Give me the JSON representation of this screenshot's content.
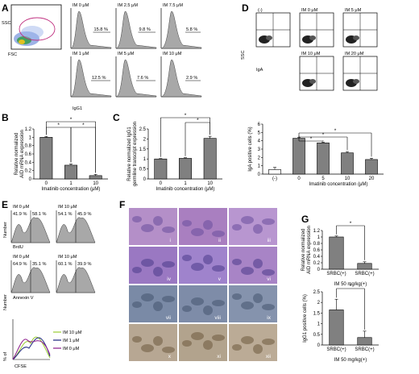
{
  "panel_letters": [
    "A",
    "B",
    "C",
    "D",
    "E",
    "F",
    "G"
  ],
  "A": {
    "scatter": {
      "x_label": "FSC",
      "y_label": "SSC"
    },
    "histograms": [
      {
        "title": "IM 0 μM",
        "pct": "15.8 %"
      },
      {
        "title": "IM 2.5 μM",
        "pct": "9.8 %"
      },
      {
        "title": "IM 7.5 μM",
        "pct": "5.8 %"
      },
      {
        "title": "IM 1 μM",
        "pct": "12.5 %"
      },
      {
        "title": "IM 5 μM",
        "pct": "7.6 %"
      },
      {
        "title": "IM 10 μM",
        "pct": "2.9 %"
      }
    ],
    "x_label": "IgG1"
  },
  "D": {
    "flow": [
      {
        "title": "(-)"
      },
      {
        "title": "IM 0 μM"
      },
      {
        "title": "IM 5 μM"
      },
      {
        "title": "IM 10 μM"
      },
      {
        "title": "IM 20 μM"
      }
    ],
    "ssc_label": "SSC",
    "iga_label": "IgA"
  },
  "E": {
    "titles": [
      "IM 0 μM",
      "IM 10 μM"
    ],
    "brdu": [
      [
        "41.9 %",
        "58.1 %"
      ],
      [
        "54.1 %",
        "45.9 %"
      ]
    ],
    "annexin": [
      [
        "64.9 %",
        "35.1 %"
      ],
      [
        "60.1 %",
        "39.9 %"
      ]
    ],
    "brdu_label": "BrdU",
    "annexin_label": "Annexin V",
    "number_label": "Number",
    "cfse_label": "CFSE",
    "pct_label": "% of",
    "legend": [
      "IM 10 μM",
      "IM 1 μM",
      "IM 0 μM"
    ],
    "legend_colors": [
      "#9acd32",
      "#1a237e",
      "#8a1a8a"
    ]
  },
  "F": {
    "labels": [
      "i",
      "ii",
      "iii",
      "iv",
      "v",
      "vi",
      "vii",
      "viii",
      "ix",
      "x",
      "xi",
      "xii"
    ]
  },
  "chart_data": [
    {
      "id": "B",
      "type": "bar",
      "categories": [
        "0",
        "1",
        "10"
      ],
      "values": [
        1.0,
        0.33,
        0.08
      ],
      "errors": [
        0.02,
        0.03,
        0.03
      ],
      "ylabel": "Relative normalized AID mRNA expression",
      "xlabel": "Imatinib concentration (μM)",
      "ylim": [
        0,
        1.2
      ],
      "yticks": [
        "0",
        "0.2",
        "0.4",
        "0.6",
        "0.8",
        "1",
        "1.2"
      ],
      "significance": [
        "*",
        "*",
        "*"
      ]
    },
    {
      "id": "C",
      "type": "bar",
      "categories": [
        "0",
        "1",
        "10"
      ],
      "values": [
        1.0,
        1.03,
        2.03
      ],
      "errors": [
        0.02,
        0.03,
        0.1
      ],
      "ylabel": "Relative normalized IgG1 germline transcript expression",
      "xlabel": "Imatinib concentration (μM)",
      "ylim": [
        0,
        2.5
      ],
      "yticks": [
        "0",
        "0.5",
        "1",
        "1.5",
        "2",
        "2.5"
      ],
      "significance": [
        "*",
        "*"
      ]
    },
    {
      "id": "D",
      "type": "bar",
      "categories": [
        "(-)",
        "0",
        "5",
        "10",
        "20"
      ],
      "values": [
        0.55,
        4.3,
        3.75,
        2.55,
        1.75
      ],
      "errors": [
        0.25,
        0.1,
        0.1,
        0.15,
        0.15
      ],
      "colors": [
        "#ffffff",
        "#808080",
        "#808080",
        "#808080",
        "#808080"
      ],
      "ylabel": "IgA positive cells (%)",
      "xlabel": "Imatinib concentration (μM)",
      "ylim": [
        0,
        6
      ],
      "yticks": [
        "0",
        "1",
        "2",
        "3",
        "4",
        "5",
        "6"
      ],
      "significance": [
        "*",
        "*",
        "*"
      ]
    },
    {
      "id": "G1",
      "type": "bar",
      "categories": [
        "SRBC(+)",
        "SRBC(+)"
      ],
      "values": [
        1.0,
        0.18
      ],
      "errors": [
        0.03,
        0.05
      ],
      "ylabel": "Relative normalized AID mRNA expression",
      "xlabel": "IM 50 mg/kg(+)",
      "ylim": [
        0,
        1.2
      ],
      "yticks": [
        "0",
        "0.2",
        "0.4",
        "0.6",
        "0.8",
        "1",
        "1.2"
      ],
      "significance": [
        "*"
      ]
    },
    {
      "id": "G2",
      "type": "bar",
      "categories": [
        "SRBC(+)",
        "SRBC(+)"
      ],
      "values": [
        1.65,
        0.35
      ],
      "errors": [
        0.5,
        0.3
      ],
      "ylabel": "IgG1 positive cells (%)",
      "xlabel": "IM 50 mg/kg(+)",
      "ylim": [
        0,
        2.5
      ],
      "yticks": [
        "0",
        "0.5",
        "1",
        "1.5",
        "2",
        "2.5"
      ],
      "significance": [
        "*"
      ]
    }
  ]
}
